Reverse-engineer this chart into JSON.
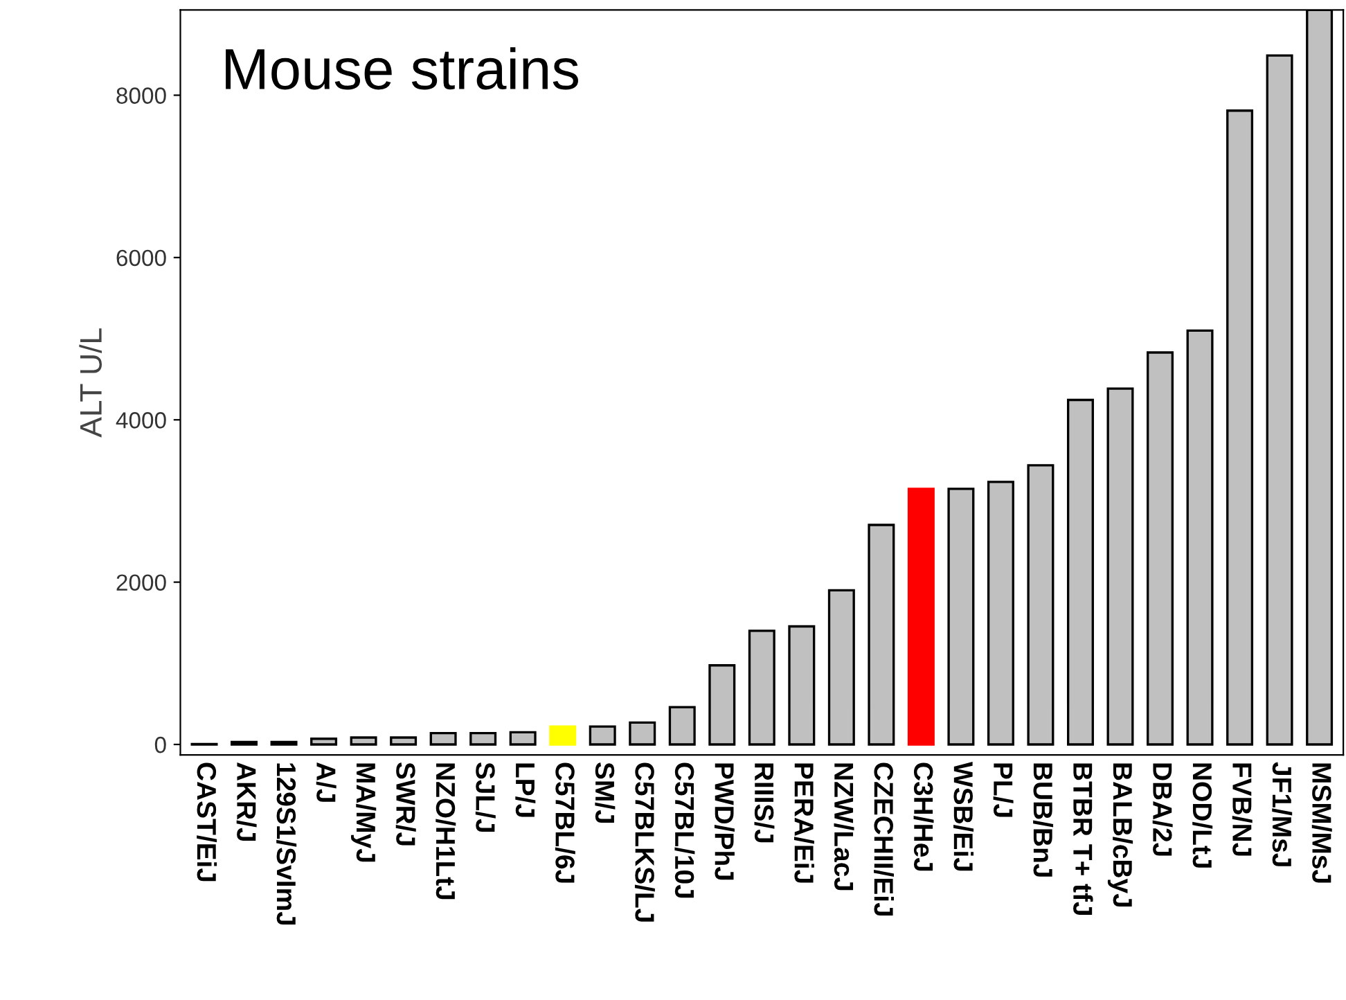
{
  "chart_data": {
    "type": "bar",
    "title": "Mouse strains",
    "ylabel": "ALT U/L",
    "categories": [
      "CAST/EiJ",
      "AKR/J",
      "129S1/SvImJ",
      "A/J",
      "MA/MyJ",
      "SWR/J",
      "NZO/H1LtJ",
      "SJL/J",
      "LP/J",
      "C57BL/6J",
      "SM/J",
      "C57BLKS/LJ",
      "C57BL/10J",
      "PWD/PhJ",
      "RIIIS/J",
      "PERA/EiJ",
      "NZW/LacJ",
      "CZECHII/EiJ",
      "C3H/HeJ",
      "WSB/EiJ",
      "PL/J",
      "BUB/BnJ",
      "BTBR T+ tfJ",
      "BALB/cByJ",
      "DBA/2J",
      "NOD/LtJ",
      "FVB/NJ",
      "JF1/MsJ",
      "MSM/MsJ"
    ],
    "values": [
      5,
      30,
      30,
      70,
      85,
      85,
      140,
      140,
      150,
      220,
      220,
      270,
      460,
      975,
      1400,
      1455,
      1900,
      2705,
      3150,
      3150,
      3235,
      3440,
      4245,
      4385,
      4830,
      5100,
      7810,
      8490,
      9050
    ],
    "colors": [
      "#c0c0c0",
      "#c0c0c0",
      "#c0c0c0",
      "#c0c0c0",
      "#c0c0c0",
      "#c0c0c0",
      "#c0c0c0",
      "#c0c0c0",
      "#c0c0c0",
      "#ffff00",
      "#c0c0c0",
      "#c0c0c0",
      "#c0c0c0",
      "#c0c0c0",
      "#c0c0c0",
      "#c0c0c0",
      "#c0c0c0",
      "#c0c0c0",
      "#ff0000",
      "#c0c0c0",
      "#c0c0c0",
      "#c0c0c0",
      "#c0c0c0",
      "#c0c0c0",
      "#c0c0c0",
      "#c0c0c0",
      "#c0c0c0",
      "#c0c0c0",
      "#c0c0c0"
    ],
    "ylim": [
      -130,
      9050
    ],
    "yticks": [
      0,
      2000,
      4000,
      6000,
      8000
    ],
    "grid": false,
    "legend": false
  }
}
